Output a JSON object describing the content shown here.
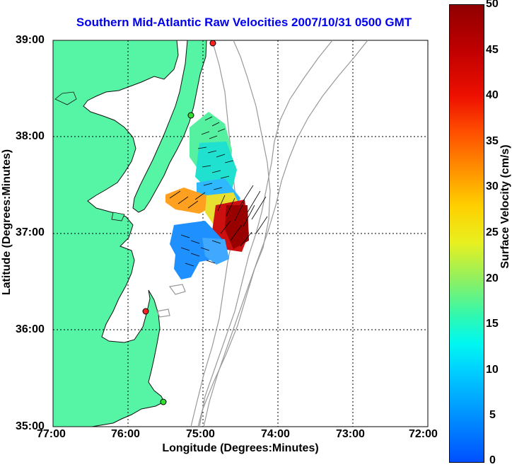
{
  "title": "Southern Mid-Atlantic Raw Velocities 2007/10/31 0500 GMT",
  "x_axis": {
    "label": "Longitude (Degrees:Minutes)",
    "ticks": [
      "77:00",
      "76:00",
      "75:00",
      "74:00",
      "73:00",
      "72:00"
    ]
  },
  "y_axis": {
    "label": "Latitude (Degrees:Minutes)",
    "ticks": [
      "39:00",
      "38:00",
      "37:00",
      "36:00",
      "35:00"
    ]
  },
  "colorbar": {
    "label": "Surface Velocity (cm/s)",
    "ticks": [
      "50",
      "45",
      "40",
      "35",
      "30",
      "25",
      "20",
      "15",
      "10",
      "5",
      "0"
    ],
    "min": 0,
    "max": 50
  },
  "colors": {
    "land": "#55f5a5",
    "title": "#0000ee",
    "bathymetry": "#999999",
    "station_red": "#ff2020",
    "station_green": "#33dd33"
  },
  "stations": [
    {
      "lon": -74.88,
      "lat": 38.97,
      "color": "red"
    },
    {
      "lon": -75.15,
      "lat": 38.22,
      "color": "green"
    },
    {
      "lon": -75.73,
      "lat": 36.17,
      "color": "red"
    },
    {
      "lon": -75.52,
      "lat": 35.25,
      "color": "green"
    }
  ]
}
